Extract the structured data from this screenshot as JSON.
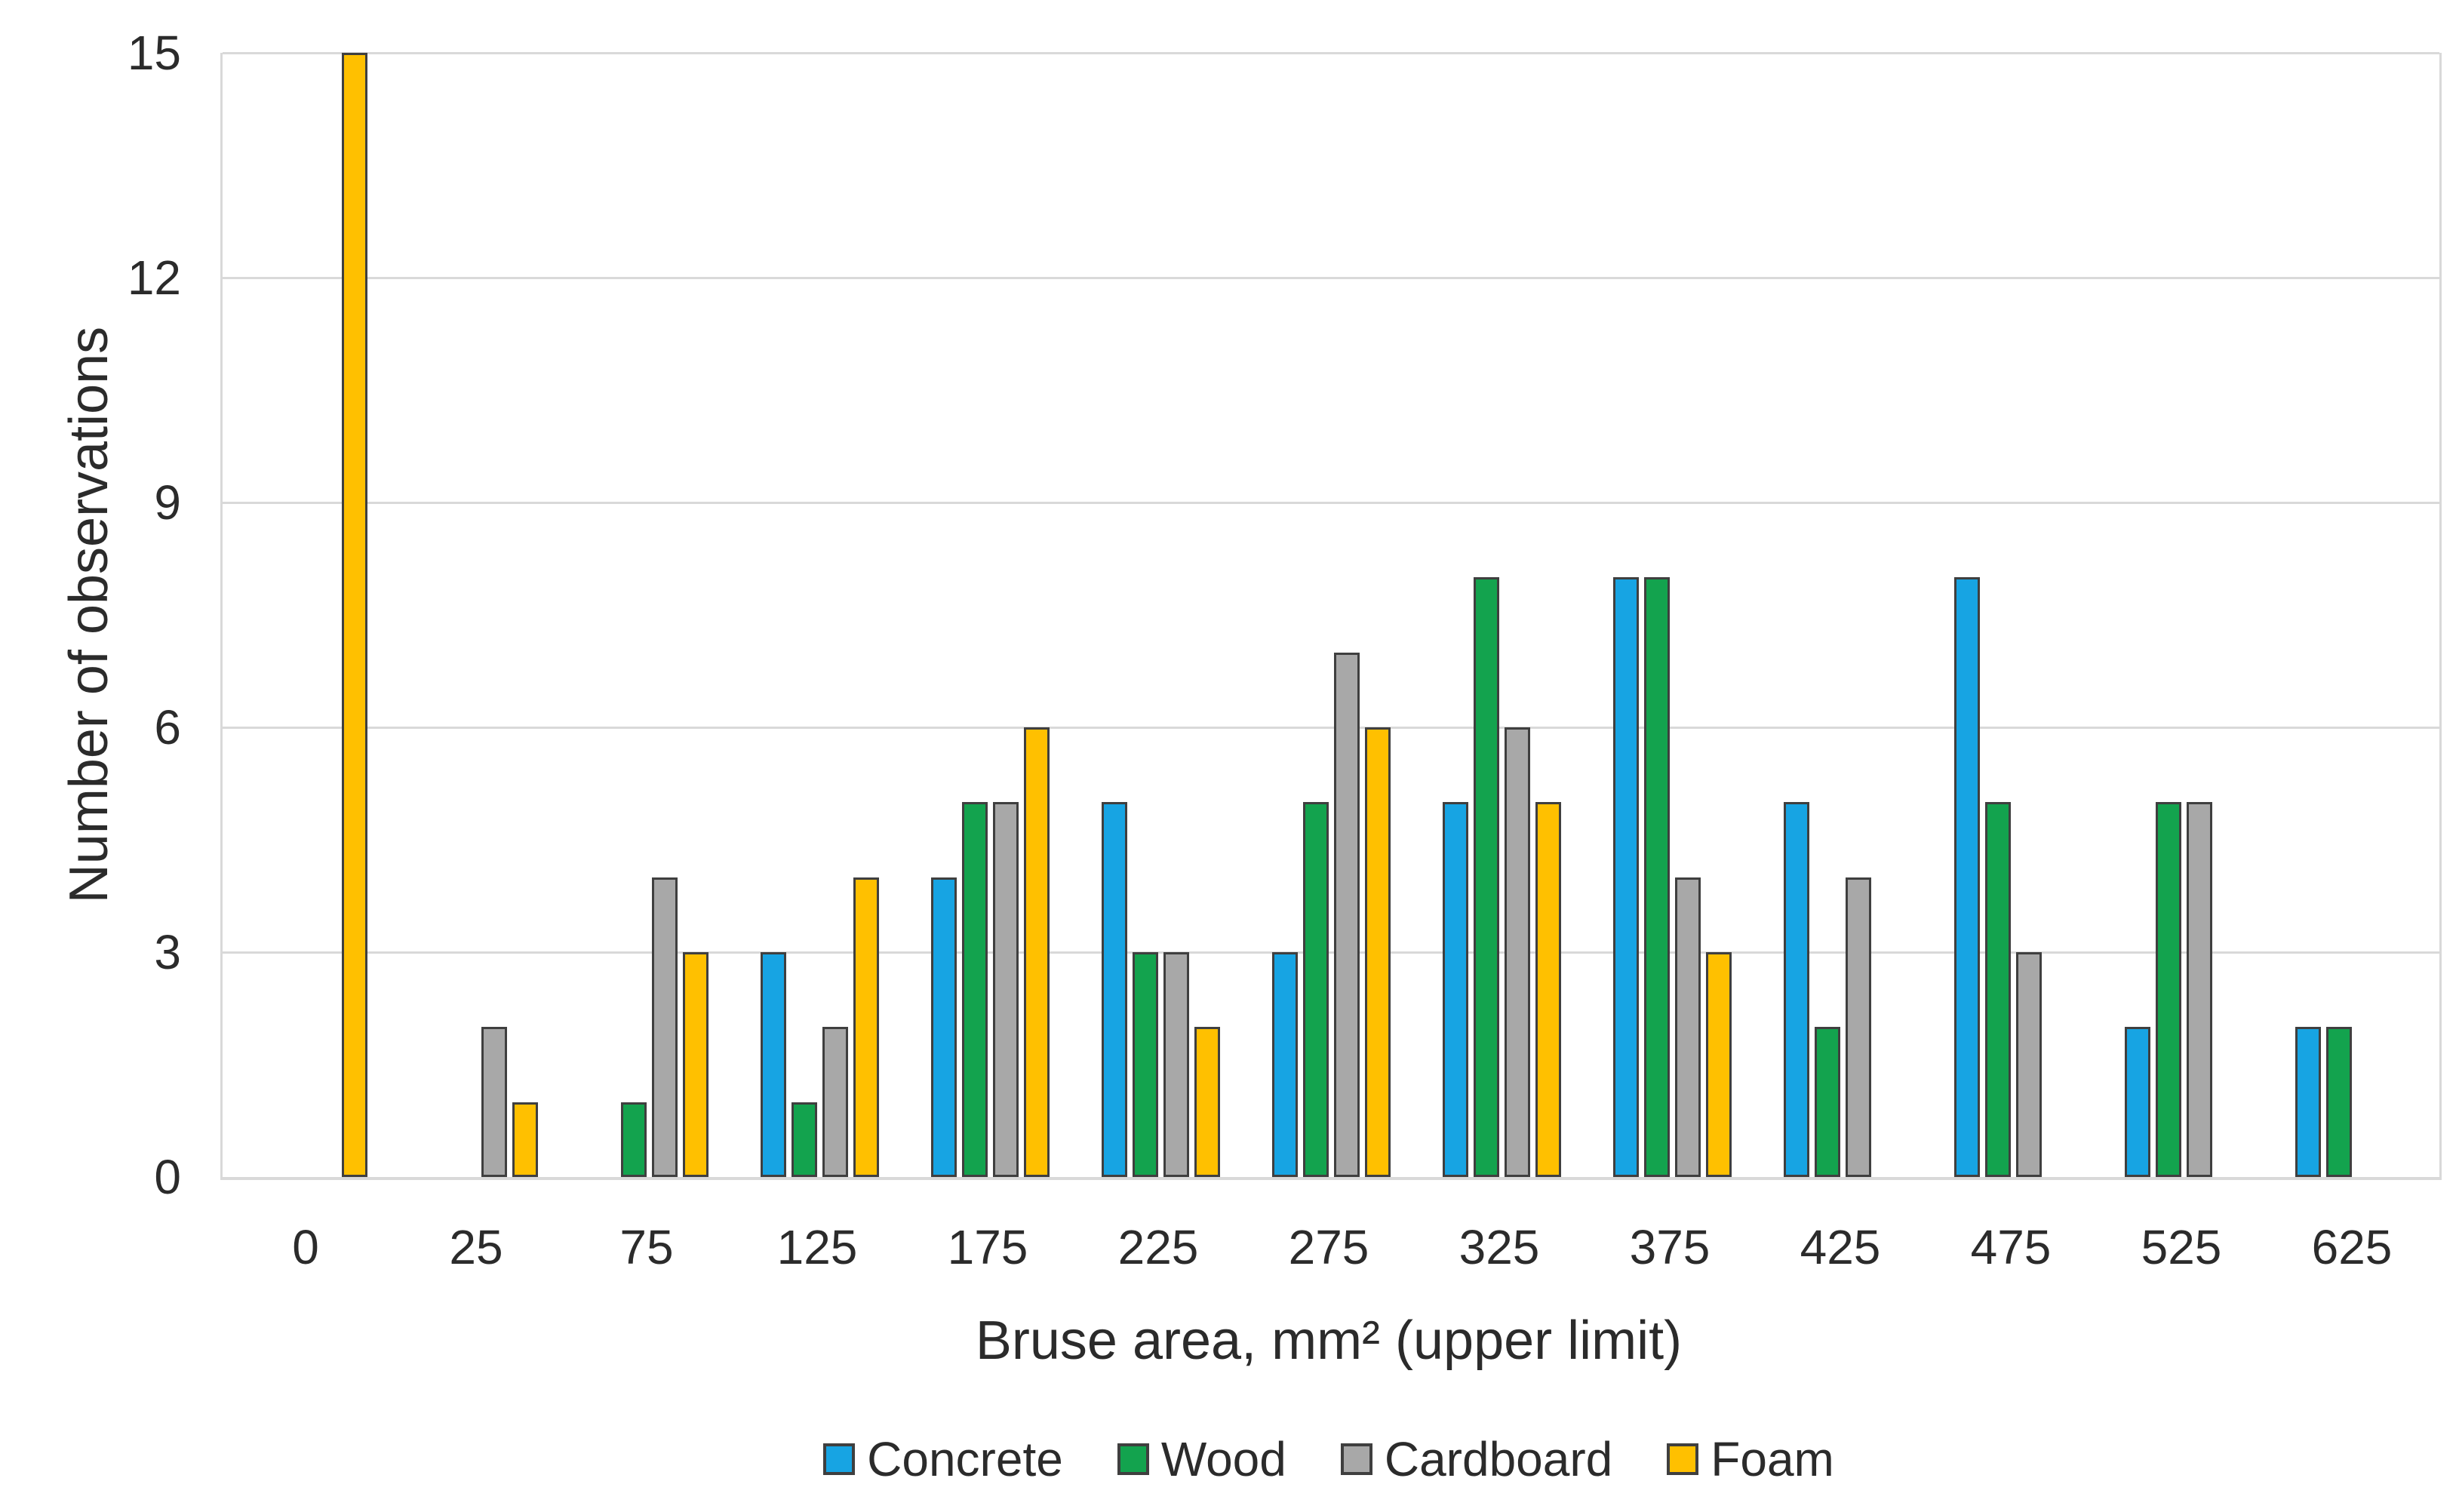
{
  "chart_data": {
    "type": "bar",
    "title": "",
    "xlabel": "Bruse area, mm² (upper limit)",
    "ylabel": "Number of observations",
    "categories": [
      "0",
      "25",
      "75",
      "125",
      "175",
      "225",
      "275",
      "325",
      "375",
      "425",
      "475",
      "525",
      "625"
    ],
    "series": [
      {
        "name": "Concrete",
        "color": "#17a4e3",
        "values": [
          null,
          null,
          null,
          3,
          4,
          5,
          3,
          5,
          8,
          5,
          8,
          2,
          2
        ]
      },
      {
        "name": "Wood",
        "color": "#13a34e",
        "values": [
          null,
          null,
          1,
          1,
          5,
          3,
          5,
          8,
          8,
          2,
          5,
          5,
          2
        ]
      },
      {
        "name": "Cardboard",
        "color": "#a8a8a8",
        "values": [
          null,
          2,
          4,
          2,
          5,
          3,
          7,
          6,
          4,
          4,
          3,
          5,
          null
        ]
      },
      {
        "name": "Foam",
        "color": "#ffc000",
        "values": [
          15,
          1,
          3,
          4,
          6,
          2,
          6,
          5,
          3,
          null,
          null,
          null,
          null
        ]
      }
    ],
    "y_ticks": [
      0,
      3,
      6,
      9,
      12,
      15
    ],
    "ylim": [
      0,
      15
    ],
    "grid": true,
    "legend_position": "bottom"
  },
  "styles": {
    "bar_border": "#3f3f3f",
    "gridline": "#d9d9d9",
    "axis_line": "#d9d9d9",
    "text": "#2b2b2b",
    "background": "#ffffff"
  }
}
